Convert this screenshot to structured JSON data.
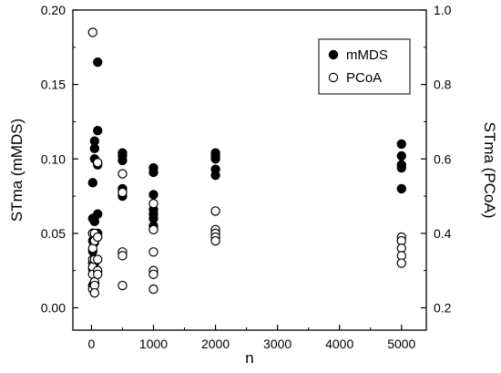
{
  "chart_data": {
    "type": "scatter",
    "xlabel": "n",
    "ylabel_left": "STma (mMDS)",
    "ylabel_right": "STma (PCoA)",
    "xlim": [
      -300,
      5400
    ],
    "ylim_left": [
      -0.015,
      0.2
    ],
    "ylim_right": [
      0.14,
      1.0
    ],
    "x_ticks": [
      0,
      1000,
      2000,
      3000,
      4000,
      5000
    ],
    "x_tick_labels": [
      "0",
      "1000",
      "2000",
      "3000",
      "4000",
      "5000"
    ],
    "y_left_ticks": [
      0.0,
      0.05,
      0.1,
      0.15,
      0.2
    ],
    "y_left_tick_labels": [
      "0.00",
      "0.05",
      "0.10",
      "0.15",
      "0.20"
    ],
    "y_right_ticks": [
      0.2,
      0.4,
      0.6,
      0.8,
      1.0
    ],
    "y_right_tick_labels": [
      "0.2",
      "0.4",
      "0.6",
      "0.8",
      "1.0"
    ],
    "legend_position": "top-right",
    "series": [
      {
        "name": "mMDS",
        "marker": "filled-circle",
        "axis": "left",
        "color": "#000000",
        "x": [
          20,
          20,
          20,
          20,
          20,
          20,
          20,
          20,
          50,
          50,
          50,
          50,
          50,
          50,
          50,
          100,
          100,
          100,
          100,
          100,
          500,
          500,
          500,
          500,
          500,
          500,
          1000,
          1000,
          1000,
          1000,
          1000,
          1000,
          1000,
          2000,
          2000,
          2000,
          2000,
          2000,
          5000,
          5000,
          5000,
          5000,
          5000
        ],
        "y": [
          0.084,
          0.06,
          0.05,
          0.045,
          0.038,
          0.03,
          0.026,
          0.015,
          0.112,
          0.107,
          0.1,
          0.058,
          0.044,
          0.03,
          0.017,
          0.165,
          0.119,
          0.096,
          0.063,
          0.05,
          0.104,
          0.102,
          0.099,
          0.08,
          0.078,
          0.075,
          0.094,
          0.091,
          0.076,
          0.066,
          0.063,
          0.06,
          0.055,
          0.104,
          0.102,
          0.1,
          0.093,
          0.089,
          0.11,
          0.102,
          0.096,
          0.094,
          0.08
        ]
      },
      {
        "name": "PCoA",
        "marker": "open-circle",
        "axis": "right",
        "color": "#000000",
        "x": [
          20,
          20,
          20,
          20,
          20,
          20,
          20,
          50,
          50,
          50,
          50,
          50,
          50,
          100,
          100,
          100,
          100,
          100,
          500,
          500,
          500,
          500,
          500,
          1000,
          1000,
          1000,
          1000,
          1000,
          1000,
          2000,
          2000,
          2000,
          2000,
          2000,
          5000,
          5000,
          5000,
          5000,
          5000
        ],
        "y": [
          0.94,
          0.4,
          0.36,
          0.33,
          0.31,
          0.29,
          0.25,
          0.4,
          0.38,
          0.33,
          0.27,
          0.26,
          0.24,
          0.59,
          0.39,
          0.33,
          0.3,
          0.29,
          0.56,
          0.51,
          0.35,
          0.34,
          0.26,
          0.48,
          0.41,
          0.35,
          0.3,
          0.29,
          0.25,
          0.46,
          0.41,
          0.4,
          0.39,
          0.38,
          0.39,
          0.38,
          0.36,
          0.34,
          0.32
        ]
      }
    ]
  }
}
